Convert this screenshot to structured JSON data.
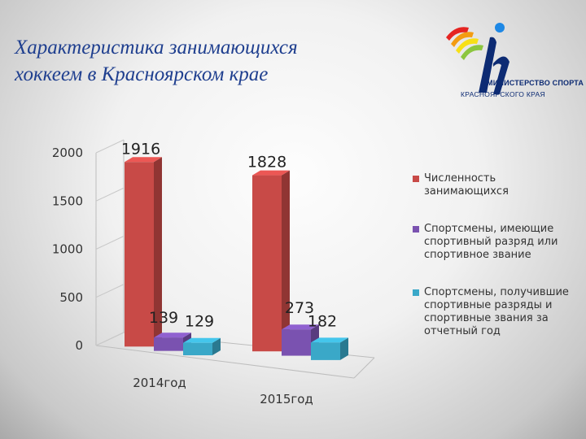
{
  "title": "Характеристика занимающихся хоккеем в Красноярском крае",
  "logo": {
    "line1": "МИНИСТЕРСТВО СПОРТА",
    "line2": "КРАСНОЯРСКОГО КРАЯ",
    "colors": [
      "#e52421",
      "#f39c12",
      "#f7e017",
      "#8cc63f",
      "#1e88e5",
      "#0d2b73"
    ]
  },
  "chart_data": {
    "type": "bar",
    "categories": [
      "2014год",
      "2015год"
    ],
    "series": [
      {
        "name": "Численность занимающихся",
        "values": [
          1916,
          1828
        ],
        "color": "#c84a47"
      },
      {
        "name": "Спортсмены, имеющие спортивный разряд или спортивное звание",
        "values": [
          139,
          273
        ],
        "color": "#7a52b0"
      },
      {
        "name": "Спортсмены, получившие спортивные разряды и спортивные звания за отчетный год",
        "values": [
          129,
          182
        ],
        "color": "#3aa8c8"
      }
    ],
    "y_ticks": [
      "2000",
      "1500",
      "1000",
      "500",
      "0"
    ],
    "ylim": [
      0,
      2000
    ],
    "three_d": true,
    "legend_position": "right"
  }
}
